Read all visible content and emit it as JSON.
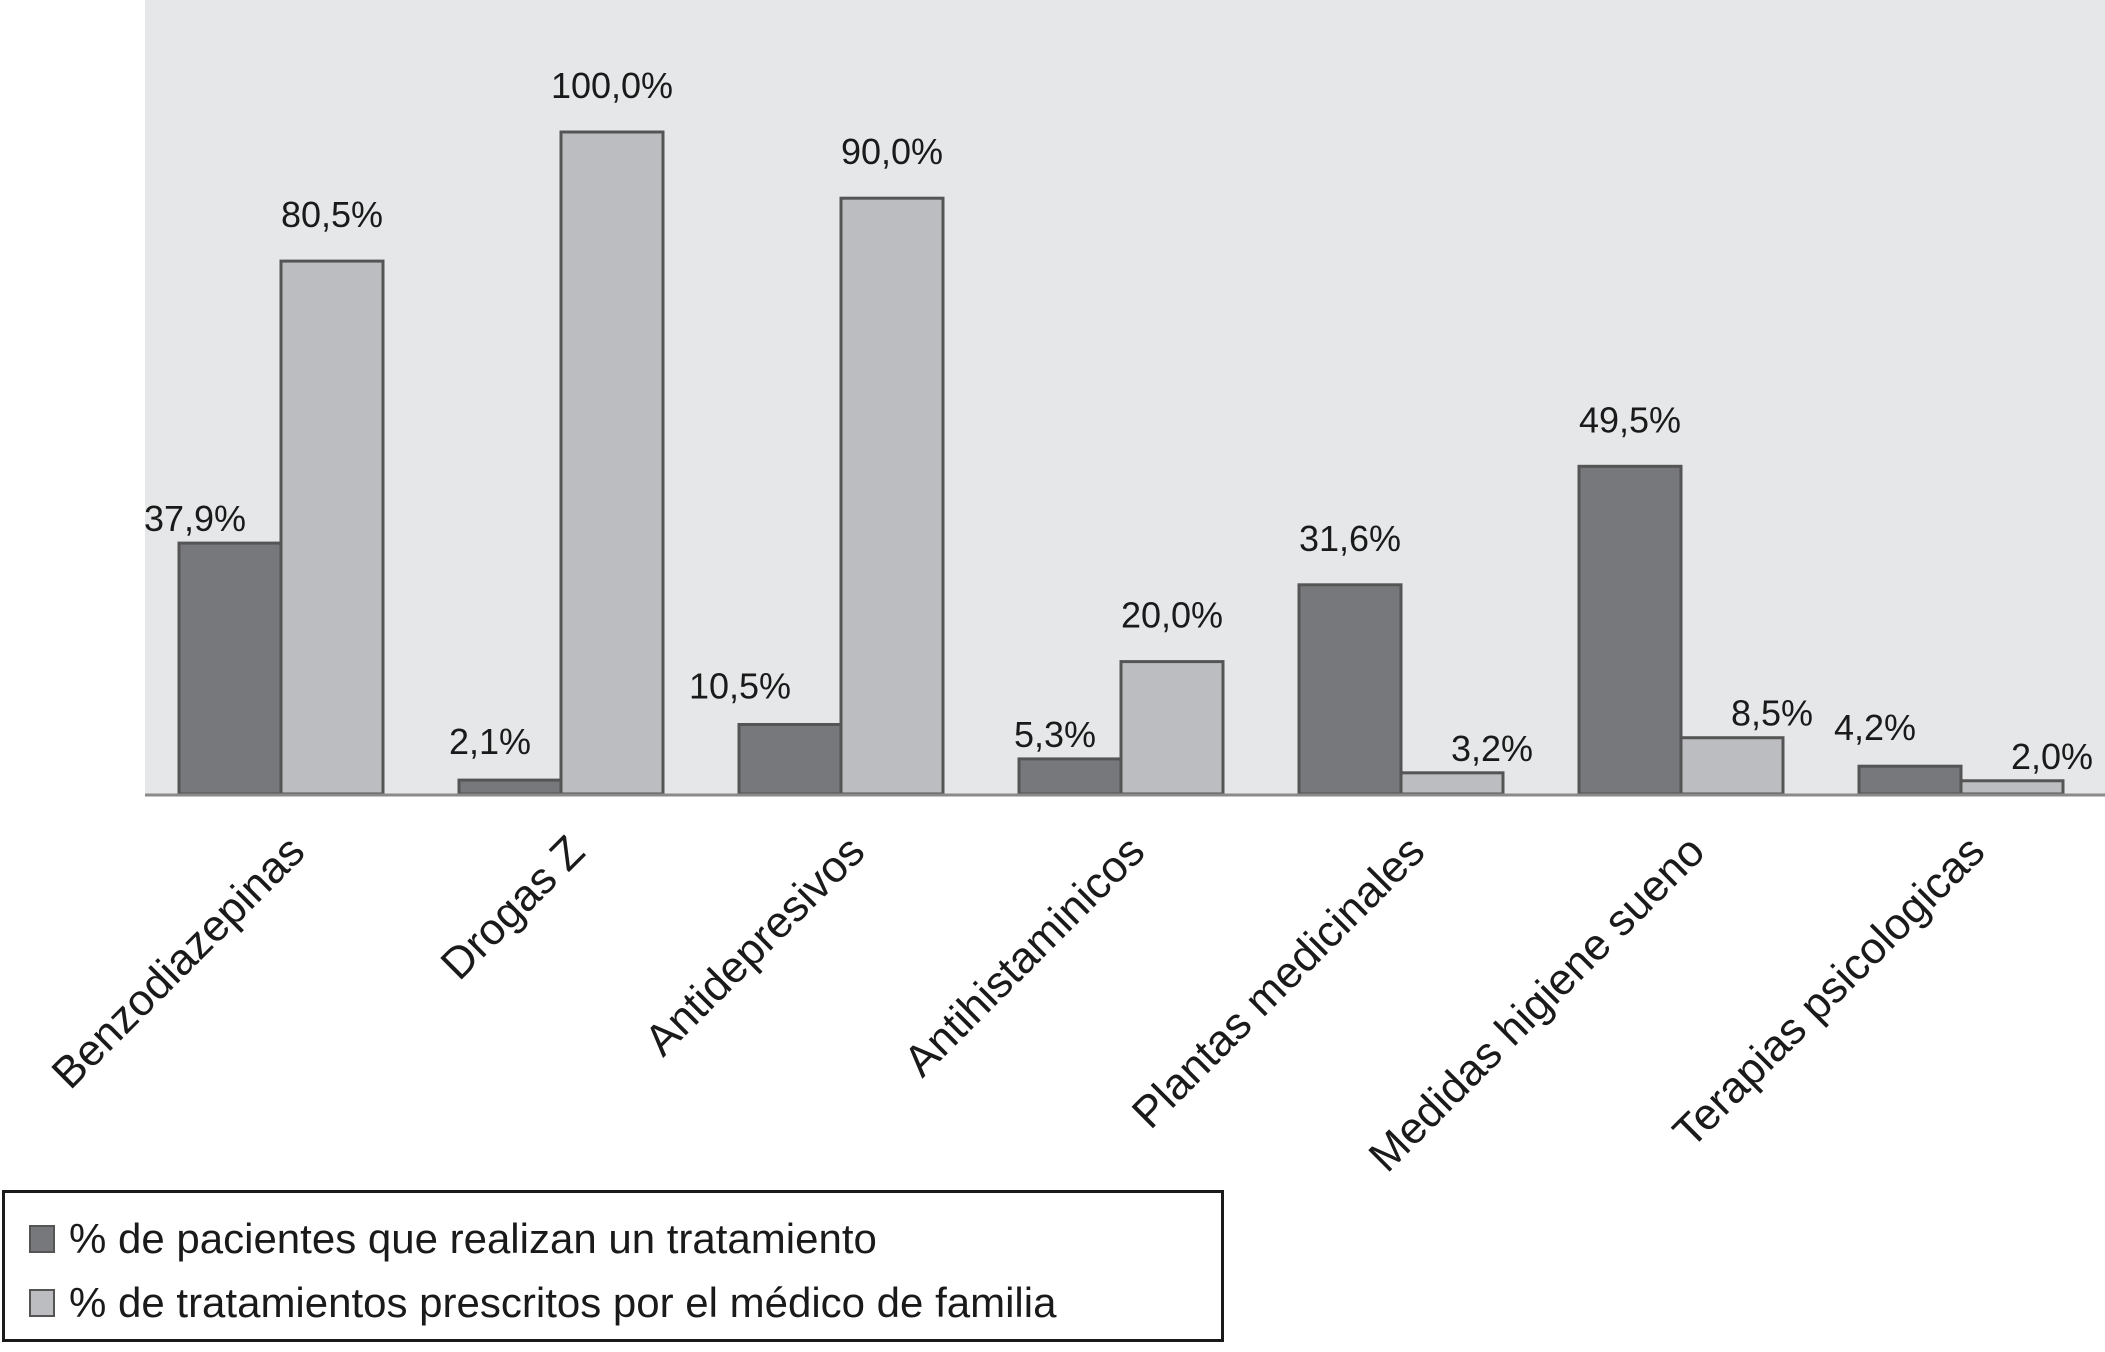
{
  "chart_data": {
    "type": "bar",
    "categories": [
      "Benzodiazepinas",
      "Drogas Z",
      "Antidepresivos",
      "Antihistaminicos",
      "Plantas medicinales",
      "Medidas higiene sueno",
      "Terapias psicologicas"
    ],
    "series": [
      {
        "name": "% de pacientes que realizan un tratamiento",
        "values": [
          37.9,
          2.1,
          10.5,
          5.3,
          31.6,
          49.5,
          4.2
        ],
        "labels": [
          "37,9%",
          "2,1%",
          "10,5%",
          "5,3%",
          "31,6%",
          "49,5%",
          "4,2%"
        ],
        "color": "#77787b"
      },
      {
        "name": "% de tratamientos prescritos por el médico de familia",
        "values": [
          80.5,
          100.0,
          90.0,
          20.0,
          3.2,
          8.5,
          2.0
        ],
        "labels": [
          "80,5%",
          "100,0%",
          "90,0%",
          "20,0%",
          "3,2%",
          "8,5%",
          "2,0%"
        ],
        "color": "#bcbdc0"
      }
    ],
    "title": "",
    "xlabel": "",
    "ylabel": "",
    "ylim": [
      0,
      120
    ],
    "grid": false,
    "legend_position": "bottom-left",
    "plot_background": "#e6e7e8",
    "bar_stroke": "#555555",
    "axis_color": "#8a8a8a"
  }
}
